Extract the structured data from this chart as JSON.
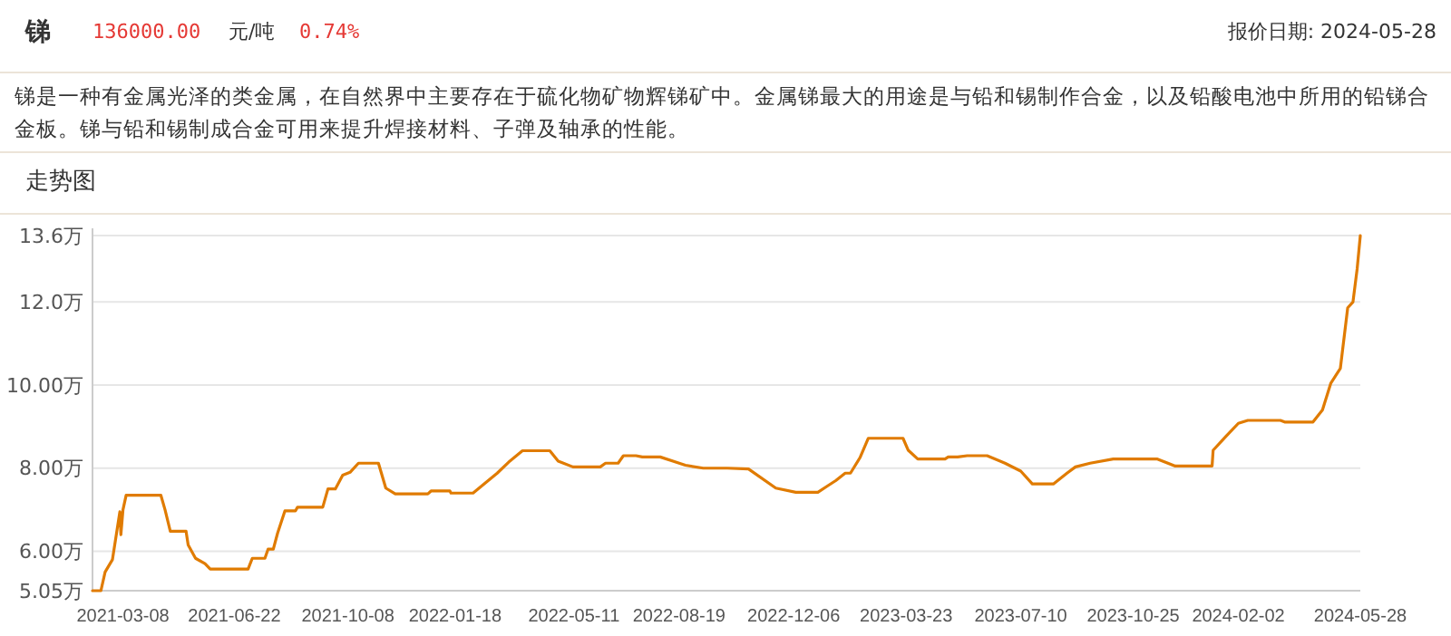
{
  "chart_data": {
    "type": "line",
    "title": "锑",
    "subtitle": "锑是一种有金属光泽的类金属，在自然界中主要存在于硫化物矿物辉锑矿中。金属锑最大的用途是与铅和锡制作合金，以及铅酸电池中所用的铅锑合金板。锑与铅和锡制成合金可用来提升焊接材料、子弹及轴承的性能。",
    "annotations": [
      "136000.00",
      "元/吨",
      "0.74%",
      "报价日期: 2024-05-28",
      "走势图"
    ],
    "xlim": [
      "2021-02-07",
      "2024-05-28"
    ],
    "xticks": [
      {
        "value": "2021-03-08",
        "label": "2021-03-08"
      },
      {
        "value": "2021-06-22",
        "label": "2021-06-22"
      },
      {
        "value": "2021-10-08",
        "label": "2021-10-08"
      },
      {
        "value": "2022-01-18",
        "label": "2022-01-18"
      },
      {
        "value": "2022-05-11",
        "label": "2022-05-11"
      },
      {
        "value": "2022-08-19",
        "label": "2022-08-19"
      },
      {
        "value": "2022-12-06",
        "label": "2022-12-06"
      },
      {
        "value": "2023-03-23",
        "label": "2023-03-23"
      },
      {
        "value": "2023-07-10",
        "label": "2023-07-10"
      },
      {
        "value": "2023-10-25",
        "label": "2023-10-25"
      },
      {
        "value": "2024-02-02",
        "label": "2024-02-02"
      },
      {
        "value": "2024-05-28",
        "label": "2024-05-28"
      }
    ],
    "ylim": [
      5.05,
      13.6
    ],
    "yticks": [
      {
        "value": 5.05,
        "label": "5.05万"
      },
      {
        "value": 6,
        "label": "6.00万"
      },
      {
        "value": 8,
        "label": "8.00万"
      },
      {
        "value": 10,
        "label": "10.00万"
      },
      {
        "value": 12,
        "label": "12.0万"
      },
      {
        "value": 13.6,
        "label": "13.6万"
      }
    ],
    "grid": "y",
    "line_style": "solid",
    "series": [
      {
        "color": "#e07b00",
        "x": [
          "2021-02-07",
          "2021-02-15",
          "2021-02-19",
          "2021-02-26",
          "2021-03-05",
          "2021-03-06",
          "2021-03-08",
          "2021-03-11",
          "2021-04-13",
          "2021-04-17",
          "2021-04-22",
          "2021-05-07",
          "2021-05-09",
          "2021-05-16",
          "2021-05-25",
          "2021-05-30",
          "2021-07-05",
          "2021-07-09",
          "2021-07-21",
          "2021-07-24",
          "2021-07-29",
          "2021-08-02",
          "2021-08-09",
          "2021-08-19",
          "2021-08-21",
          "2021-09-14",
          "2021-09-19",
          "2021-09-26",
          "2021-10-03",
          "2021-10-10",
          "2021-10-18",
          "2021-11-06",
          "2021-11-13",
          "2021-11-22",
          "2021-12-23",
          "2021-12-26",
          "2022-01-13",
          "2022-01-14",
          "2022-02-04",
          "2022-02-16",
          "2022-02-27",
          "2022-03-11",
          "2022-03-23",
          "2022-04-18",
          "2022-04-26",
          "2022-05-10",
          "2022-06-05",
          "2022-06-10",
          "2022-06-22",
          "2022-06-27",
          "2022-07-09",
          "2022-07-15",
          "2022-08-01",
          "2022-08-25",
          "2022-09-11",
          "2022-10-04",
          "2022-10-24",
          "2022-11-19",
          "2022-12-08",
          "2022-12-29",
          "2023-01-07",
          "2023-01-15",
          "2023-01-24",
          "2023-01-29",
          "2023-02-07",
          "2023-02-15",
          "2023-03-20",
          "2023-03-25",
          "2023-04-03",
          "2023-04-29",
          "2023-05-02",
          "2023-05-11",
          "2023-05-20",
          "2023-06-08",
          "2023-06-25",
          "2023-07-10",
          "2023-07-21",
          "2023-08-10",
          "2023-08-23",
          "2023-08-31",
          "2023-09-14",
          "2023-10-06",
          "2023-11-17",
          "2023-12-04",
          "2024-01-08",
          "2024-01-09",
          "2024-01-21",
          "2024-02-02",
          "2024-02-11",
          "2024-03-13",
          "2024-03-17",
          "2024-04-13",
          "2024-04-22",
          "2024-04-30",
          "2024-05-09",
          "2024-05-16",
          "2024-05-21",
          "2024-05-25",
          "2024-05-28"
        ],
        "values": [
          5.05,
          5.05,
          5.5,
          5.8,
          6.95,
          6.4,
          7.0,
          7.35,
          7.35,
          7.0,
          6.48,
          6.48,
          6.15,
          5.83,
          5.7,
          5.57,
          5.57,
          5.83,
          5.83,
          6.05,
          6.05,
          6.43,
          6.97,
          6.97,
          7.06,
          7.06,
          7.5,
          7.5,
          7.83,
          7.9,
          8.12,
          8.12,
          7.52,
          7.38,
          7.38,
          7.45,
          7.45,
          7.4,
          7.4,
          7.65,
          7.88,
          8.17,
          8.42,
          8.42,
          8.17,
          8.03,
          8.03,
          8.12,
          8.12,
          8.3,
          8.3,
          8.27,
          8.27,
          8.07,
          8.0,
          8.0,
          7.98,
          7.52,
          7.42,
          7.42,
          7.57,
          7.7,
          7.88,
          7.88,
          8.25,
          8.72,
          8.72,
          8.43,
          8.22,
          8.22,
          8.27,
          8.27,
          8.3,
          8.3,
          8.12,
          7.93,
          7.62,
          7.62,
          7.88,
          8.03,
          8.12,
          8.22,
          8.22,
          8.05,
          8.05,
          8.43,
          8.76,
          9.08,
          9.15,
          9.15,
          9.11,
          9.11,
          9.4,
          10.05,
          10.4,
          11.86,
          12.0,
          12.8,
          13.6
        ]
      }
    ]
  }
}
